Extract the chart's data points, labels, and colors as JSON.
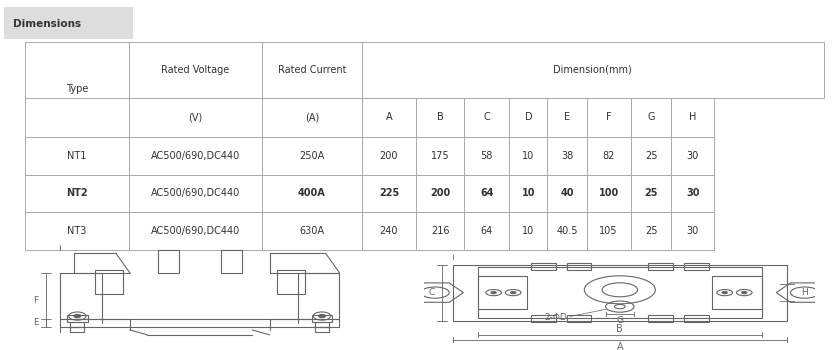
{
  "title": "Dimensions",
  "table_data": [
    [
      "NT1",
      "AC500/690,DC440",
      "250A",
      "200",
      "175",
      "58",
      "10",
      "38",
      "82",
      "25",
      "30"
    ],
    [
      "NT2",
      "AC500/690,DC440",
      "400A",
      "225",
      "200",
      "64",
      "10",
      "40",
      "100",
      "25",
      "30"
    ],
    [
      "NT3",
      "AC500/690,DC440",
      "630A",
      "240",
      "216",
      "64",
      "10",
      "40.5",
      "105",
      "25",
      "30"
    ]
  ],
  "bold_row": 1,
  "bg_color": "#ffffff",
  "border_color": "#aaaaaa",
  "text_color": "#333333",
  "title_bg": "#dddddd",
  "draw_color": "#666666"
}
